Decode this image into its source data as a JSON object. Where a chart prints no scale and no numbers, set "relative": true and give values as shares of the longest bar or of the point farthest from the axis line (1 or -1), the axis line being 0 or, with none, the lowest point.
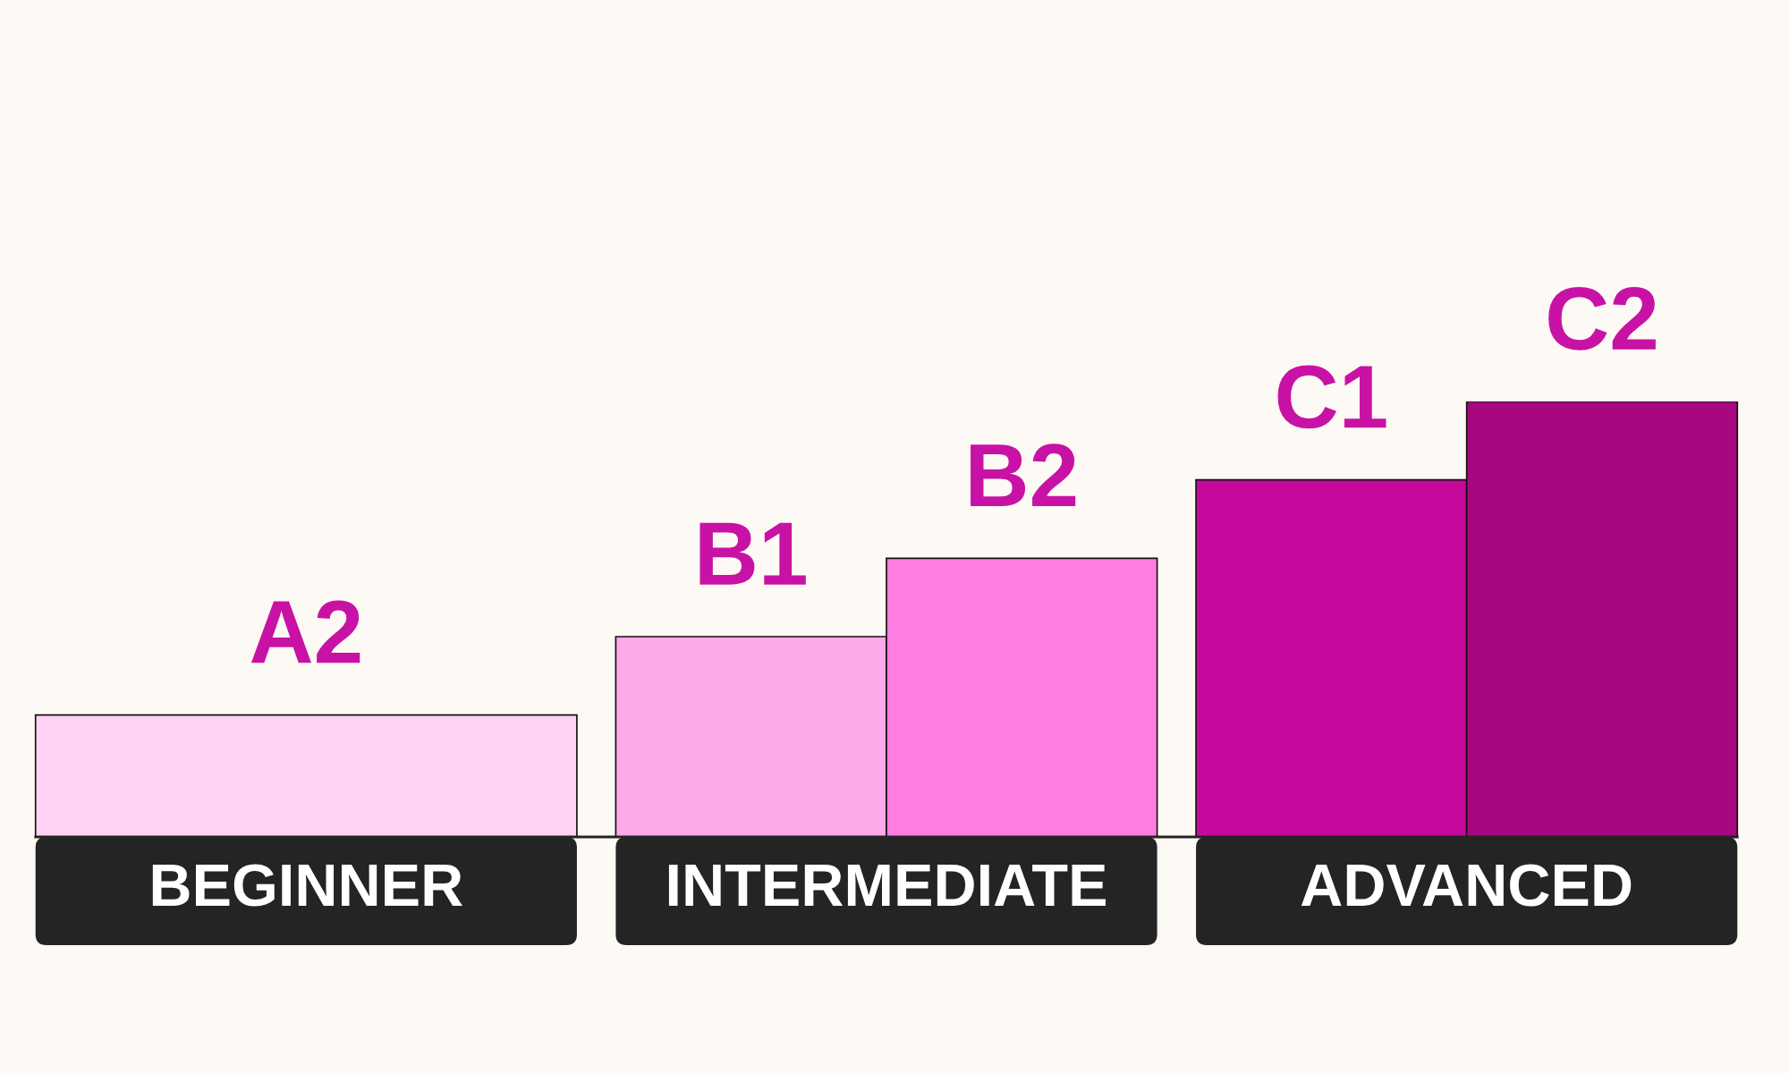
{
  "chart_data": {
    "type": "bar",
    "relative": true,
    "categories": [
      "BEGINNER",
      "INTERMEDIATE",
      "ADVANCED"
    ],
    "series": [
      {
        "name": "A2",
        "color": "#ffd1f3",
        "values": [
          0.28,
          null,
          null
        ]
      },
      {
        "name": "B1",
        "color": "#fda8e8",
        "values": [
          null,
          0.46,
          null
        ]
      },
      {
        "name": "B2",
        "color": "#ff7de0",
        "values": [
          null,
          0.64,
          null
        ]
      },
      {
        "name": "C1",
        "color": "#c5099c",
        "values": [
          null,
          null,
          0.82
        ]
      },
      {
        "name": "C2",
        "color": "#a8077f",
        "values": [
          null,
          null,
          1
        ]
      }
    ]
  }
}
